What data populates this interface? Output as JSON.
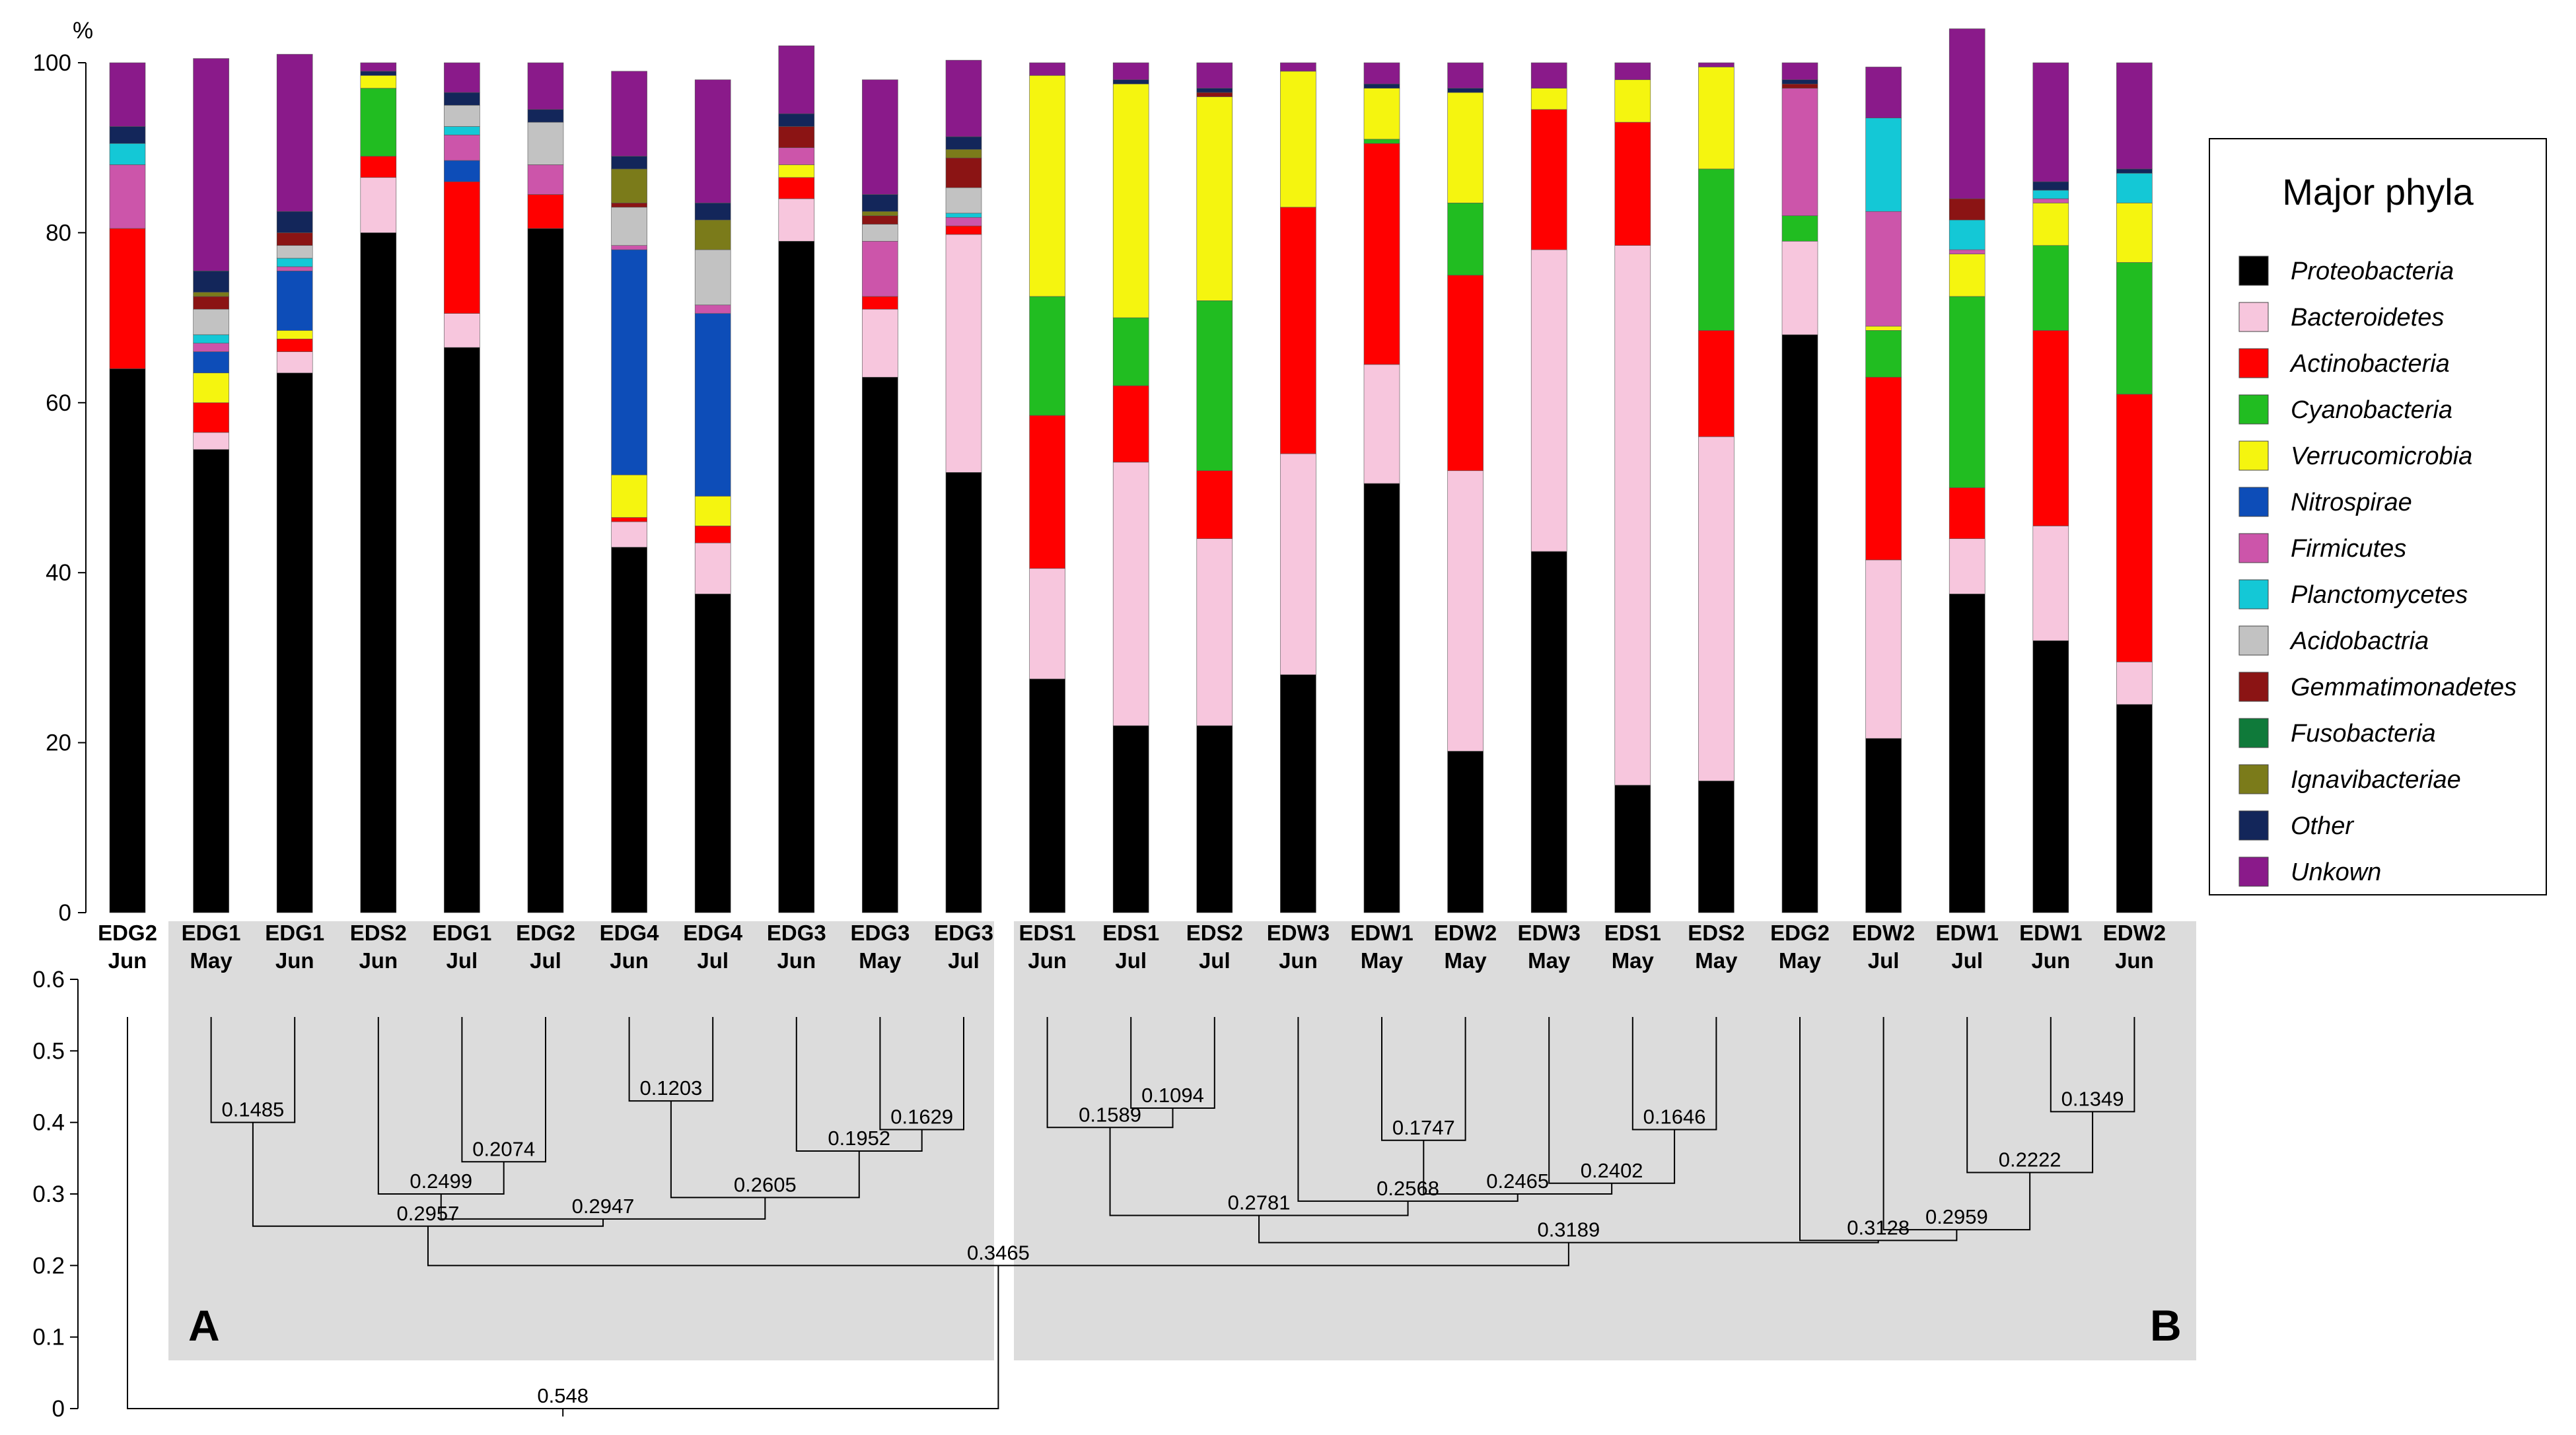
{
  "chart_data": {
    "type": "bar",
    "stacked": true,
    "ylabel": "%",
    "ylim": [
      0,
      100
    ],
    "yticks": [
      0,
      20,
      40,
      60,
      80,
      100
    ],
    "legend_title": "Major phyla",
    "categories": [
      "EDG2 Jun",
      "EDG1 May",
      "EDG1 Jun",
      "EDS2 Jun",
      "EDG1 Jul",
      "EDG2 Jul",
      "EDG4 Jun",
      "EDG4 Jul",
      "EDG3 Jun",
      "EDG3 May",
      "EDG3 Jul",
      "EDS1 Jun",
      "EDS1 Jul",
      "EDS2 Jul",
      "EDW3 Jun",
      "EDW1 May",
      "EDW2 May",
      "EDW3 May",
      "EDS1 May",
      "EDS2 May",
      "EDG2 May",
      "EDW2 Jul",
      "EDW1 Jul",
      "EDW1 Jun",
      "EDW2 Jun"
    ],
    "category_lines": [
      [
        "EDG2",
        "Jun"
      ],
      [
        "EDG1",
        "May"
      ],
      [
        "EDG1",
        "Jun"
      ],
      [
        "EDS2",
        "Jun"
      ],
      [
        "EDG1",
        "Jul"
      ],
      [
        "EDG2",
        "Jul"
      ],
      [
        "EDG4",
        "Jun"
      ],
      [
        "EDG4",
        "Jul"
      ],
      [
        "EDG3",
        "Jun"
      ],
      [
        "EDG3",
        "May"
      ],
      [
        "EDG3",
        "Jul"
      ],
      [
        "EDS1",
        "Jun"
      ],
      [
        "EDS1",
        "Jul"
      ],
      [
        "EDS2",
        "Jul"
      ],
      [
        "EDW3",
        "Jun"
      ],
      [
        "EDW1",
        "May"
      ],
      [
        "EDW2",
        "May"
      ],
      [
        "EDW3",
        "May"
      ],
      [
        "EDS1",
        "May"
      ],
      [
        "EDS2",
        "May"
      ],
      [
        "EDG2",
        "May"
      ],
      [
        "EDW2",
        "Jul"
      ],
      [
        "EDW1",
        "Jul"
      ],
      [
        "EDW1",
        "Jun"
      ],
      [
        "EDW2",
        "Jun"
      ]
    ],
    "series": [
      {
        "name": "Proteobacteria",
        "color": "#000000",
        "values": [
          64,
          54.5,
          63.5,
          80,
          66.5,
          80.5,
          43,
          37.5,
          79,
          63,
          51.8,
          27.5,
          22,
          22,
          28,
          50.5,
          19,
          42.5,
          15,
          15.5,
          68,
          20.5,
          37.5,
          32,
          24.5
        ]
      },
      {
        "name": "Bacteroidetes",
        "color": "#f7c6dd",
        "values": [
          0,
          2,
          2.5,
          6.5,
          4,
          0,
          3,
          6,
          5,
          8,
          28,
          13,
          31,
          22,
          26,
          14,
          33,
          35.5,
          63.5,
          40.5,
          11,
          21,
          6.5,
          13.5,
          5
        ]
      },
      {
        "name": "Actinobacteria",
        "color": "#ff0000",
        "values": [
          16.5,
          3.5,
          1.5,
          2.5,
          15.5,
          4,
          0.5,
          2,
          2.5,
          1.5,
          1,
          18,
          9,
          8,
          29,
          26,
          23,
          16.5,
          14.5,
          12.5,
          0,
          21.5,
          6,
          23,
          31.5
        ]
      },
      {
        "name": "Cyanobacteria",
        "color": "#21bd21",
        "values": [
          0,
          0,
          0,
          8,
          0,
          0,
          0,
          0,
          0,
          0,
          0,
          14,
          8,
          20,
          0,
          0.5,
          8.5,
          0,
          0,
          19,
          3,
          5.5,
          22.5,
          10,
          15.5
        ]
      },
      {
        "name": "Verrucomicrobia",
        "color": "#f5f50f",
        "values": [
          0,
          3.5,
          1,
          1.5,
          0,
          0,
          5,
          3.5,
          1.5,
          0,
          0,
          26,
          27.5,
          24,
          16,
          6,
          13,
          2.5,
          5,
          12,
          0,
          0.5,
          5,
          5,
          7
        ]
      },
      {
        "name": "Nitrospirae",
        "color": "#0d4db8",
        "values": [
          0,
          2.5,
          7,
          0,
          2.5,
          0,
          26.5,
          21.5,
          0,
          0,
          0,
          0,
          0,
          0,
          0,
          0,
          0,
          0,
          0,
          0,
          0,
          0,
          0,
          0,
          0
        ]
      },
      {
        "name": "Firmicutes",
        "color": "#cc55aa",
        "values": [
          7.5,
          1,
          0.5,
          0,
          3,
          3.5,
          0.5,
          1,
          2,
          6.5,
          1,
          0,
          0,
          0,
          0,
          0,
          0,
          0,
          0,
          0,
          15,
          13.5,
          0.5,
          0.5,
          0
        ]
      },
      {
        "name": "Planctomycetes",
        "color": "#14c8d6",
        "values": [
          2.5,
          1,
          1,
          0,
          1,
          0,
          0,
          0,
          0,
          0,
          0.5,
          0,
          0,
          0,
          0,
          0,
          0,
          0,
          0,
          0,
          0,
          11,
          3.5,
          1,
          3.5
        ]
      },
      {
        "name": "Acidobactria",
        "color": "#c2c2c2",
        "values": [
          0,
          3,
          1.5,
          0,
          2.5,
          5,
          4.5,
          6.5,
          0,
          2,
          3,
          0,
          0,
          0,
          0,
          0,
          0,
          0,
          0,
          0,
          0,
          0,
          0,
          0,
          0
        ]
      },
      {
        "name": "Gemmatimonadetes",
        "color": "#8b1414",
        "values": [
          0,
          1.5,
          1.5,
          0,
          0,
          0,
          0.5,
          0,
          2.5,
          1,
          3.5,
          0,
          0,
          0.5,
          0,
          0,
          0,
          0,
          0,
          0,
          0.5,
          0,
          2.5,
          0,
          0
        ]
      },
      {
        "name": "Fusobacteria",
        "color": "#0f7a3a",
        "values": [
          0,
          0,
          0,
          0,
          0,
          0,
          0,
          0,
          0,
          0,
          0,
          0,
          0,
          0,
          0,
          0,
          0,
          0,
          0,
          0,
          0,
          0,
          0,
          0,
          0
        ]
      },
      {
        "name": "Ignavibacteriae",
        "color": "#7b7b1a",
        "values": [
          0,
          0.5,
          0,
          0,
          0,
          0,
          4,
          3.5,
          0,
          0.5,
          1,
          0,
          0,
          0,
          0,
          0,
          0,
          0,
          0,
          0,
          0,
          0,
          0,
          0,
          0
        ]
      },
      {
        "name": "Other",
        "color": "#13265a",
        "values": [
          2,
          2.5,
          2.5,
          0.5,
          1.5,
          1.5,
          1.5,
          2,
          1.5,
          2,
          1.5,
          0,
          0.5,
          0.5,
          0,
          0.5,
          0.5,
          0,
          0,
          0,
          0.5,
          0,
          0,
          1,
          0.5
        ]
      },
      {
        "name": "Unkown",
        "color": "#8a1a8a",
        "values": [
          7.5,
          25,
          18.5,
          1,
          3.5,
          5.5,
          10,
          14.5,
          8,
          13.5,
          9,
          1.5,
          2,
          3,
          1,
          2.5,
          3,
          3,
          2,
          0.5,
          2,
          6,
          20,
          14,
          12.5
        ]
      }
    ],
    "dendrogram": {
      "axis_range": [
        0,
        0.6
      ],
      "axis_ticks": [
        "0",
        "0.1",
        "0.2",
        "0.3",
        "0.4",
        "0.5",
        "0.6"
      ],
      "cluster_labels": [
        "A",
        "B"
      ],
      "nodes": [
        {
          "id": "n1",
          "left": 1,
          "right": 2,
          "height": 0.4,
          "label": "0.1485"
        },
        {
          "id": "n2",
          "left": 4,
          "right": 5,
          "height": 0.345,
          "label": "0.2074"
        },
        {
          "id": "n3",
          "left": 3,
          "right": "n2",
          "height": 0.3,
          "label": "0.2499"
        },
        {
          "id": "n4",
          "left": 6,
          "right": 7,
          "height": 0.43,
          "label": "0.1203"
        },
        {
          "id": "n5",
          "left": 9,
          "right": 10,
          "height": 0.39,
          "label": "0.1629"
        },
        {
          "id": "n6",
          "left": 8,
          "right": "n5",
          "height": 0.36,
          "label": "0.1952"
        },
        {
          "id": "n7",
          "left": "n4",
          "right": "n6",
          "height": 0.295,
          "label": "0.2605"
        },
        {
          "id": "n8",
          "left": "n3",
          "right": "n7",
          "height": 0.265,
          "label": "0.2947"
        },
        {
          "id": "n9",
          "left": "n1",
          "right": "n8",
          "height": 0.255,
          "label": "0.2957"
        },
        {
          "id": "n10",
          "left": 12,
          "right": 13,
          "height": 0.42,
          "label": "0.1094"
        },
        {
          "id": "n11",
          "left": 11,
          "right": "n10",
          "height": 0.393,
          "label": "0.1589"
        },
        {
          "id": "n12",
          "left": 15,
          "right": 16,
          "height": 0.375,
          "label": "0.1747"
        },
        {
          "id": "n13",
          "left": 18,
          "right": 19,
          "height": 0.39,
          "label": "0.1646"
        },
        {
          "id": "n14",
          "left": 17,
          "right": "n13",
          "height": 0.315,
          "label": "0.2402"
        },
        {
          "id": "n15",
          "left": "n12",
          "right": "n14",
          "height": 0.3,
          "label": "0.2465"
        },
        {
          "id": "n16",
          "left": 14,
          "right": "n15",
          "height": 0.29,
          "label": "0.2568"
        },
        {
          "id": "n17",
          "left": "n11",
          "right": "n16",
          "height": 0.27,
          "label": "0.2781"
        },
        {
          "id": "n18",
          "left": 23,
          "right": 24,
          "height": 0.415,
          "label": "0.1349"
        },
        {
          "id": "n19",
          "left": 22,
          "right": "n18",
          "height": 0.33,
          "label": "0.2222"
        },
        {
          "id": "n20",
          "left": 21,
          "right": "n19",
          "height": 0.25,
          "label": "0.2959"
        },
        {
          "id": "n21",
          "left": 20,
          "right": "n20",
          "height": 0.235,
          "label": "0.3128"
        },
        {
          "id": "n22",
          "left": "n17",
          "right": "n21",
          "height": 0.232,
          "label": "0.3189"
        },
        {
          "id": "n23",
          "left": "n9",
          "right": "n22",
          "height": 0.2,
          "label": "0.3465"
        },
        {
          "id": "n24",
          "left": 0,
          "right": "n23",
          "height": 0.0,
          "label": "0.548"
        }
      ]
    }
  }
}
